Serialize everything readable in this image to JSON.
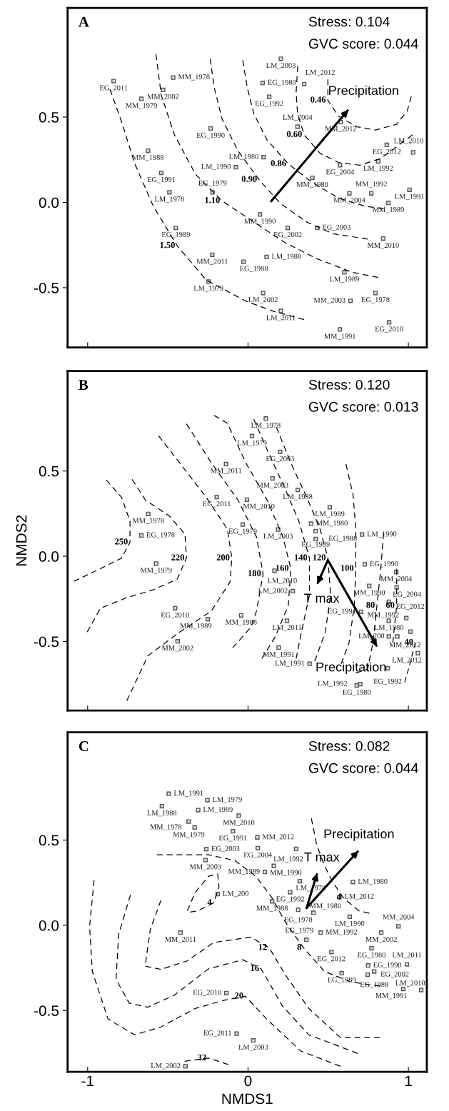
{
  "chart_data": [
    {
      "type": "scatter",
      "title": "A",
      "xlim": [
        -1.125,
        1.115
      ],
      "ylim": [
        -0.85,
        1.14
      ],
      "xticks": [
        -1,
        0,
        1
      ],
      "yticks": [
        {
          "value": -0.5,
          "label": "-0.5"
        },
        {
          "value": 0,
          "label": "0.0"
        },
        {
          "value": 0.5,
          "label": "0.5"
        }
      ],
      "tick_labels": "y",
      "annotations": [
        "Stress: 0.104",
        "GVC score: 0.044",
        {
          "text": "0.46",
          "x": 0.498,
          "y": 0.598
        },
        {
          "text": "0.60",
          "x": 0.35,
          "y": 0.396
        },
        {
          "text": "0.86",
          "x": 0.251,
          "y": 0.226
        },
        {
          "text": "0.90",
          "x": 0.069,
          "y": 0.133
        },
        {
          "text": "1.10",
          "x": -0.162,
          "y": 0.009
        },
        {
          "text": "1.50",
          "x": -0.442,
          "y": -0.254
        },
        {
          "text": "EG_2011",
          "x": -0.838,
          "y": 0.711
        },
        {
          "text": "MM_1978",
          "x": -0.467,
          "y": 0.732
        },
        {
          "text": "MM_2002",
          "x": -0.53,
          "y": 0.659
        },
        {
          "text": "MM_1979",
          "x": -0.665,
          "y": 0.607
        },
        {
          "text": "EG_1990",
          "x": -0.233,
          "y": 0.433
        },
        {
          "text": "MM_1988",
          "x": -0.624,
          "y": 0.303
        },
        {
          "text": "EG_1991",
          "x": -0.541,
          "y": 0.173
        },
        {
          "text": "LM_1978",
          "x": -0.49,
          "y": 0.059
        },
        {
          "text": "EG_1989",
          "x": -0.45,
          "y": -0.149
        },
        {
          "text": "LM_1990",
          "x": -0.076,
          "y": 0.206
        },
        {
          "text": "EG_1979",
          "x": -0.221,
          "y": 0.059
        },
        {
          "text": "MM_1990",
          "x": 0.074,
          "y": -0.071
        },
        {
          "text": "EG_2002",
          "x": 0.248,
          "y": -0.149
        },
        {
          "text": "EG_2003",
          "x": 0.432,
          "y": -0.149
        },
        {
          "text": "MM_2011",
          "x": -0.223,
          "y": -0.307
        },
        {
          "text": "LM_1979",
          "x": -0.246,
          "y": -0.464
        },
        {
          "text": "EG_1988",
          "x": -0.028,
          "y": -0.348
        },
        {
          "text": "LM_1988",
          "x": 0.116,
          "y": -0.32
        },
        {
          "text": "LM_2002",
          "x": 0.094,
          "y": -0.531
        },
        {
          "text": "LM_2011",
          "x": 0.205,
          "y": -0.636
        },
        {
          "text": "LM_2003",
          "x": 0.205,
          "y": 0.842
        },
        {
          "text": "EG_1980",
          "x": 0.091,
          "y": 0.7
        },
        {
          "text": "LM_2012",
          "x": 0.35,
          "y": 0.693
        },
        {
          "text": "EG_1992",
          "x": 0.132,
          "y": 0.619
        },
        {
          "text": "LM_2004",
          "x": 0.309,
          "y": 0.444
        },
        {
          "text": "LM_1980",
          "x": 0.097,
          "y": 0.265
        },
        {
          "text": "MM_1980",
          "x": 0.401,
          "y": 0.144
        },
        {
          "text": "MM_2012",
          "x": 0.578,
          "y": 0.471
        },
        {
          "text": "EG_2004",
          "x": 0.574,
          "y": 0.218
        },
        {
          "text": "EG_2012",
          "x": 0.865,
          "y": 0.337
        },
        {
          "text": "LM_1992",
          "x": 0.812,
          "y": 0.24
        },
        {
          "text": "MM_2004",
          "x": 0.632,
          "y": 0.053
        },
        {
          "text": "MM_1992",
          "x": 0.769,
          "y": 0.053
        },
        {
          "text": "LM_2010",
          "x": 1.03,
          "y": 0.293
        },
        {
          "text": "LM_1991",
          "x": 1.007,
          "y": 0.074
        },
        {
          "text": "MM_1989",
          "x": 0.875,
          "y": -0.003
        },
        {
          "text": "MM_2010",
          "x": 0.843,
          "y": -0.212
        },
        {
          "text": "LM_1989",
          "x": 0.601,
          "y": -0.41
        },
        {
          "text": "EG_1978",
          "x": 0.795,
          "y": -0.531
        },
        {
          "text": "MM_2003",
          "x": 0.639,
          "y": -0.577
        },
        {
          "text": "EG_2010",
          "x": 0.88,
          "y": -0.703
        },
        {
          "text": "MM_1991",
          "x": 0.573,
          "y": -0.745
        }
      ],
      "series": [
        {
          "color": "#555555",
          "marker": "square",
          "x": [
            -0.838,
            -0.467,
            -0.53,
            -0.665,
            -0.233,
            -0.624,
            -0.541,
            -0.49,
            -0.45,
            -0.076,
            -0.221,
            0.074,
            0.248,
            0.432,
            -0.223,
            -0.246,
            -0.028,
            0.116,
            0.094,
            0.205,
            0.205,
            0.091,
            0.35,
            0.132,
            0.309,
            0.097,
            0.401,
            0.578,
            0.574,
            0.865,
            0.812,
            0.632,
            0.769,
            1.03,
            1.007,
            0.875,
            0.843,
            0.601,
            0.795,
            0.639,
            0.88,
            0.573
          ],
          "values": [
            0.711,
            0.732,
            0.659,
            0.607,
            0.433,
            0.303,
            0.173,
            0.059,
            -0.149,
            0.206,
            0.059,
            -0.071,
            -0.149,
            -0.149,
            -0.307,
            -0.464,
            -0.348,
            -0.32,
            -0.531,
            -0.636,
            0.842,
            0.7,
            0.693,
            0.619,
            0.444,
            0.265,
            0.144,
            0.471,
            0.218,
            0.337,
            0.24,
            0.053,
            0.053,
            0.293,
            0.074,
            -0.003,
            -0.212,
            -0.41,
            -0.531,
            -0.577,
            -0.703,
            -0.745
          ]
        },
        {
          "type": "line",
          "color": "#000000",
          "line_style": "dashed",
          "marker": "none",
          "x": [
            -0.861,
            -0.789,
            -0.706,
            -0.591,
            -0.442,
            -0.261,
            -0.013,
            0.168,
            0.35
          ],
          "values": [
            0.663,
            0.474,
            0.226,
            -0.022,
            -0.254,
            -0.455,
            -0.579,
            -0.641,
            -0.687
          ]
        },
        {
          "type": "line",
          "color": "#000000",
          "line_style": "dashed",
          "marker": "none",
          "x": [
            -0.574,
            -0.541,
            -0.459,
            -0.327,
            -0.162,
            0.036,
            0.234,
            0.432,
            0.647,
            0.812
          ],
          "values": [
            0.868,
            0.628,
            0.396,
            0.164,
            0.009,
            -0.115,
            -0.238,
            -0.331,
            -0.409,
            -0.44
          ]
        },
        {
          "type": "line",
          "color": "#000000",
          "line_style": "dashed",
          "marker": "none",
          "x": [
            -0.236,
            -0.211,
            -0.162,
            -0.063,
            0.069,
            0.201,
            0.366,
            0.531,
            0.746
          ],
          "values": [
            0.842,
            0.675,
            0.489,
            0.303,
            0.133,
            -0.006,
            -0.115,
            -0.184,
            -0.215
          ]
        },
        {
          "type": "line",
          "color": "#000000",
          "line_style": "dashed",
          "marker": "none",
          "x": [
            -0.033,
            -0.005,
            0.036,
            0.119,
            0.251,
            0.399,
            0.564,
            0.729,
            0.845
          ],
          "values": [
            0.833,
            0.675,
            0.52,
            0.365,
            0.226,
            0.118,
            0.025,
            -0.022,
            -0.037
          ]
        },
        {
          "type": "line",
          "color": "#000000",
          "line_style": "dashed",
          "marker": "none",
          "x": [
            0.31,
            0.3,
            0.309,
            0.35,
            0.449,
            0.564,
            0.696,
            0.828,
            0.96,
            1.026
          ],
          "values": [
            0.799,
            0.644,
            0.52,
            0.396,
            0.288,
            0.234,
            0.218,
            0.257,
            0.35,
            0.396
          ]
        },
        {
          "type": "line",
          "color": "#000000",
          "line_style": "dashed",
          "marker": "none",
          "x": [
            0.498,
            0.498,
            0.564,
            0.68,
            0.795,
            0.927,
            0.993,
            1.018
          ],
          "values": [
            0.721,
            0.598,
            0.505,
            0.443,
            0.424,
            0.458,
            0.536,
            0.621
          ]
        },
        {
          "type": "line",
          "name": "Precipitation",
          "color": "#000000",
          "line_style": "solid",
          "marker": "none",
          "x": [
            0.144,
            0.625
          ],
          "values": [
            0.006,
            0.543
          ]
        }
      ]
    },
    {
      "type": "scatter",
      "title": "B",
      "ylabel": "NMDS2",
      "xlim": [
        -1.125,
        1.115
      ],
      "ylim": [
        -0.905,
        1.087
      ],
      "xticks": [
        -1,
        0,
        1
      ],
      "yticks": [
        {
          "value": -0.5,
          "label": "-0.5"
        },
        {
          "value": 0,
          "label": "0.0"
        },
        {
          "value": 0.5,
          "label": "0.5"
        }
      ],
      "tick_labels": "y",
      "annotations": [
        "Stress: 0.120",
        "GVC score: 0.013",
        {
          "text": "250",
          "x": -0.736,
          "y": 0.082
        },
        {
          "text": "220",
          "x": -0.384,
          "y": -0.011
        },
        {
          "text": "200",
          "x": -0.101,
          "y": -0.011
        },
        {
          "text": "180",
          "x": 0.094,
          "y": -0.104
        },
        {
          "text": "160",
          "x": 0.267,
          "y": -0.073
        },
        {
          "text": "140",
          "x": 0.383,
          "y": -0.011
        },
        {
          "text": "120",
          "x": 0.498,
          "y": -0.011
        },
        {
          "text": "100",
          "x": 0.672,
          "y": -0.073
        },
        {
          "text": "80",
          "x": 0.804,
          "y": -0.29
        },
        {
          "text": "60",
          "x": 0.927,
          "y": -0.29
        },
        {
          "text": "40",
          "x": 1.043,
          "y": -0.507
        },
        {
          "text": "LM_1978",
          "x": 0.111,
          "y": 0.808
        },
        {
          "text": "LM_1979",
          "x": 0.025,
          "y": 0.705
        },
        {
          "text": "EG_2003",
          "x": 0.2,
          "y": 0.612
        },
        {
          "text": "MM_2011",
          "x": -0.137,
          "y": 0.541
        },
        {
          "text": "MM_2003",
          "x": 0.153,
          "y": 0.457
        },
        {
          "text": "LM_1988",
          "x": 0.31,
          "y": 0.389
        },
        {
          "text": "EG_2011",
          "x": -0.195,
          "y": 0.347
        },
        {
          "text": "MM_2010",
          "x": -0.007,
          "y": 0.332
        },
        {
          "text": "LM_1989",
          "x": 0.51,
          "y": 0.288
        },
        {
          "text": "MM_1978",
          "x": -0.622,
          "y": 0.248
        },
        {
          "text": "EG_1979",
          "x": -0.033,
          "y": 0.186
        },
        {
          "text": "MM_1980",
          "x": 0.393,
          "y": 0.191
        },
        {
          "text": "LM_2003",
          "x": 0.188,
          "y": 0.157
        },
        {
          "text": "EG_1989",
          "x": 0.422,
          "y": 0.147
        },
        {
          "text": "EG_1988",
          "x": 0.422,
          "y": 0.101
        },
        {
          "text": "LM_1990",
          "x": 0.711,
          "y": 0.127
        },
        {
          "text": "EG_1978",
          "x": -0.665,
          "y": 0.122
        },
        {
          "text": "MM_1979",
          "x": -0.573,
          "y": -0.043
        },
        {
          "text": "EG_1990",
          "x": 0.728,
          "y": -0.048
        },
        {
          "text": "LM_2010",
          "x": 0.165,
          "y": -0.085
        },
        {
          "text": "MM_2004",
          "x": 0.924,
          "y": -0.093
        },
        {
          "text": "MM_1990",
          "x": 0.756,
          "y": -0.174
        },
        {
          "text": "EG_2004",
          "x": 0.927,
          "y": -0.183
        },
        {
          "text": "LM_2002",
          "x": 0.279,
          "y": -0.205
        },
        {
          "text": "MM_1992",
          "x": 0.878,
          "y": -0.267
        },
        {
          "text": "EG_2010",
          "x": -0.455,
          "y": -0.305
        },
        {
          "text": "EG_1991",
          "x": 0.705,
          "y": -0.326
        },
        {
          "text": "MM_1988",
          "x": -0.043,
          "y": -0.347
        },
        {
          "text": "LM_1980",
          "x": 0.878,
          "y": -0.378
        },
        {
          "text": "EG_2012",
          "x": 0.987,
          "y": -0.363
        },
        {
          "text": "LM_2011",
          "x": 0.243,
          "y": -0.378
        },
        {
          "text": "MM_1989",
          "x": -0.251,
          "y": -0.369
        },
        {
          "text": "MM_2012",
          "x": 1.013,
          "y": -0.442
        },
        {
          "text": "LM_200",
          "x": 0.931,
          "y": -0.471
        },
        {
          "text": "LM_2012",
          "x": 1.059,
          "y": -0.569
        },
        {
          "text": "MM_2002",
          "x": -0.439,
          "y": -0.499
        },
        {
          "text": "MM_1991",
          "x": 0.191,
          "y": -0.536
        },
        {
          "text": "LM_1991",
          "x": 0.384,
          "y": -0.631
        },
        {
          "text": "EG_1992",
          "x": 0.871,
          "y": -0.657
        },
        {
          "text": "EG_1980",
          "x": 0.678,
          "y": -0.758
        },
        {
          "text": "LM_1992",
          "x": 0.7,
          "y": -0.75
        }
      ],
      "series": [
        {
          "color": "#555555",
          "marker": "square",
          "x": [
            0.111,
            0.025,
            0.2,
            -0.137,
            0.153,
            0.31,
            -0.195,
            -0.007,
            0.51,
            -0.622,
            -0.033,
            0.393,
            0.188,
            0.422,
            0.422,
            0.711,
            -0.665,
            -0.573,
            0.728,
            0.165,
            0.924,
            0.756,
            0.927,
            0.279,
            0.878,
            -0.455,
            0.705,
            -0.043,
            0.878,
            0.987,
            0.243,
            -0.251,
            1.013,
            0.878,
            0.931,
            1.059,
            -0.439,
            0.191,
            0.384,
            0.871,
            0.678,
            0.7
          ],
          "values": [
            0.808,
            0.705,
            0.612,
            0.541,
            0.457,
            0.389,
            0.347,
            0.332,
            0.288,
            0.248,
            0.186,
            0.191,
            0.157,
            0.147,
            0.101,
            0.127,
            0.122,
            -0.043,
            -0.048,
            -0.085,
            -0.093,
            -0.174,
            -0.183,
            -0.205,
            -0.267,
            -0.305,
            -0.326,
            -0.347,
            -0.378,
            -0.363,
            -0.378,
            -0.369,
            -0.442,
            -0.471,
            -0.471,
            -0.569,
            -0.499,
            -0.536,
            -0.631,
            -0.657,
            -0.758,
            -0.75
          ]
        },
        {
          "type": "line",
          "color": "#000000",
          "line_style": "dashed",
          "marker": "none",
          "x": [
            -0.884,
            -0.789,
            -0.736,
            -0.736,
            -0.789,
            -0.921,
            -1.086
          ],
          "values": [
            0.447,
            0.346,
            0.206,
            0.082,
            -0.011,
            -0.073,
            -0.147
          ]
        },
        {
          "type": "line",
          "color": "#000000",
          "line_style": "dashed",
          "marker": "none",
          "x": [
            -0.723,
            -0.64,
            -0.492,
            -0.393,
            -0.384,
            -0.442,
            -0.591,
            -0.756,
            -0.921,
            -1.003
          ],
          "values": [
            0.451,
            0.33,
            0.237,
            0.129,
            -0.011,
            -0.135,
            -0.197,
            -0.243,
            -0.305,
            -0.445
          ]
        },
        {
          "type": "line",
          "color": "#000000",
          "line_style": "dashed",
          "marker": "none",
          "x": [
            -0.558,
            -0.426,
            -0.261,
            -0.129,
            -0.101,
            -0.112,
            -0.228,
            -0.426,
            -0.624,
            -0.756
          ],
          "values": [
            0.707,
            0.547,
            0.346,
            0.16,
            -0.011,
            -0.15,
            -0.321,
            -0.445,
            -0.584,
            -0.848
          ]
        },
        {
          "type": "line",
          "color": "#000000",
          "line_style": "dashed",
          "marker": "none",
          "x": [
            -0.384,
            -0.228,
            -0.063,
            0.053,
            0.094,
            0.053,
            0.02,
            -0.096
          ],
          "values": [
            0.777,
            0.547,
            0.33,
            0.113,
            -0.104,
            -0.321,
            -0.414,
            -0.538
          ]
        },
        {
          "type": "line",
          "color": "#000000",
          "line_style": "dashed",
          "marker": "none",
          "x": [
            -0.211,
            -0.129,
            -0.013,
            0.119,
            0.218,
            0.267,
            0.251,
            0.168,
            0.086
          ],
          "values": [
            0.826,
            0.78,
            0.547,
            0.33,
            0.113,
            -0.073,
            -0.29,
            -0.476,
            -0.6
          ]
        },
        {
          "type": "line",
          "color": "#000000",
          "line_style": "dashed",
          "marker": "none",
          "x": [
            0.036,
            0.119,
            0.218,
            0.317,
            0.383,
            0.383,
            0.333,
            0.3
          ],
          "values": [
            0.803,
            0.625,
            0.423,
            0.206,
            -0.011,
            -0.228,
            -0.445,
            -0.6
          ]
        },
        {
          "type": "line",
          "color": "#000000",
          "line_style": "dashed",
          "marker": "none",
          "x": [
            0.177,
            0.267,
            0.366,
            0.449,
            0.498,
            0.515,
            0.482,
            0.416
          ],
          "values": [
            0.757,
            0.547,
            0.346,
            0.16,
            -0.011,
            -0.228,
            -0.445,
            -0.616
          ]
        },
        {
          "type": "line",
          "color": "#000000",
          "line_style": "dashed",
          "marker": "none",
          "x": [
            0.611,
            0.655,
            0.672,
            0.672,
            0.663,
            0.63,
            0.581
          ],
          "values": [
            0.54,
            0.361,
            0.16,
            -0.073,
            -0.29,
            -0.507,
            -0.631
          ]
        },
        {
          "type": "line",
          "color": "#000000",
          "line_style": "dashed",
          "marker": "none",
          "x": [
            0.845,
            0.828,
            0.804,
            0.779,
            0.746,
            0.672
          ],
          "values": [
            0.136,
            -0.073,
            -0.29,
            -0.507,
            -0.662,
            -0.685
          ]
        },
        {
          "type": "line",
          "color": "#000000",
          "line_style": "dashed",
          "marker": "none",
          "x": [
            0.927,
            0.927,
            0.903
          ],
          "values": [
            -0.073,
            -0.29,
            -0.507
          ]
        },
        {
          "type": "line",
          "color": "#000000",
          "line_style": "dashed",
          "marker": "none",
          "x": [
            1.043,
            1.01,
            0.977
          ],
          "values": [
            -0.507,
            -0.631,
            -0.74
          ]
        },
        {
          "type": "line",
          "name": "T max",
          "color": "#000000",
          "line_style": "solid",
          "marker": "none",
          "x": [
            0.498,
            0.432
          ],
          "values": [
            -0.023,
            -0.163
          ]
        },
        {
          "type": "line",
          "name": "Precipitation",
          "color": "#000000",
          "line_style": "solid",
          "marker": "none",
          "x": [
            0.498,
            0.804
          ],
          "values": [
            -0.023,
            -0.53
          ]
        }
      ]
    },
    {
      "type": "scatter",
      "title": "C",
      "xlabel": "NMDS1",
      "xlim": [
        -1.125,
        1.115
      ],
      "ylim": [
        -0.86,
        1.133
      ],
      "xticks": [
        -1,
        0,
        1
      ],
      "yticks": [
        {
          "value": -0.5,
          "label": "-0.5"
        },
        {
          "value": 0,
          "label": "0.0"
        },
        {
          "value": 0.5,
          "label": "0.5"
        }
      ],
      "annotations": [
        "Stress: 0.082",
        "GVC score: 0.044",
        {
          "text": "4",
          "x": 0.593,
          "y": 0.163
        },
        {
          "text": "4",
          "x": -0.214,
          "y": 0.132
        },
        {
          "text": "8",
          "x": 0.346,
          "y": -0.132
        },
        {
          "text": "12",
          "x": 0.132,
          "y": -0.132
        },
        {
          "text": "16",
          "x": 0.082,
          "y": -0.256
        },
        {
          "text": "20",
          "x": -0.016,
          "y": -0.417
        },
        {
          "text": "32",
          "x": -0.247,
          "y": -0.78
        },
        {
          "text": "LM_1991",
          "x": -0.494,
          "y": 0.772
        },
        {
          "text": "LM_1979",
          "x": -0.253,
          "y": 0.735
        },
        {
          "text": "LM_1988",
          "x": -0.537,
          "y": 0.699
        },
        {
          "text": "LM_1989",
          "x": -0.311,
          "y": 0.676
        },
        {
          "text": "MM_2010",
          "x": -0.058,
          "y": 0.643
        },
        {
          "text": "MM_1979",
          "x": -0.37,
          "y": 0.609
        },
        {
          "text": "MM_1978",
          "x": -0.333,
          "y": 0.574
        },
        {
          "text": "EG_1991",
          "x": -0.094,
          "y": 0.552
        },
        {
          "text": "MM_2012",
          "x": 0.058,
          "y": 0.516
        },
        {
          "text": "EG_2003",
          "x": -0.26,
          "y": 0.447
        },
        {
          "text": "EG_2004",
          "x": 0.061,
          "y": 0.453
        },
        {
          "text": "LM_1992",
          "x": 0.3,
          "y": 0.448
        },
        {
          "text": "MM_2003",
          "x": -0.265,
          "y": 0.383
        },
        {
          "text": "MM_1990",
          "x": 0.161,
          "y": 0.349
        },
        {
          "text": "MM_1989",
          "x": 0.105,
          "y": 0.313
        },
        {
          "text": "LM_1978",
          "x": 0.323,
          "y": 0.259
        },
        {
          "text": "LM_1980",
          "x": 0.654,
          "y": 0.254
        },
        {
          "text": "EG_1992",
          "x": 0.263,
          "y": 0.194
        },
        {
          "text": "LM_2012",
          "x": 0.57,
          "y": 0.166
        },
        {
          "text": "LM_200",
          "x": -0.189,
          "y": 0.183
        },
        {
          "text": "MM_1988",
          "x": 0.15,
          "y": 0.14
        },
        {
          "text": "EG_1978",
          "x": 0.313,
          "y": 0.091
        },
        {
          "text": "MM_1980",
          "x": 0.408,
          "y": 0.073
        },
        {
          "text": "LM_1990",
          "x": 0.634,
          "y": 0.05
        },
        {
          "text": "MM_2002",
          "x": 0.831,
          "y": -0.043
        },
        {
          "text": "MM_2004",
          "x": 0.938,
          "y": -0.006
        },
        {
          "text": "MM_2011",
          "x": -0.421,
          "y": -0.043
        },
        {
          "text": "MM_1992",
          "x": 0.453,
          "y": -0.043
        },
        {
          "text": "EG_1979",
          "x": 0.364,
          "y": -0.085
        },
        {
          "text": "EG_1980",
          "x": 0.77,
          "y": -0.135
        },
        {
          "text": "EG_2012",
          "x": 0.52,
          "y": -0.157
        },
        {
          "text": "EG_1990",
          "x": 0.749,
          "y": -0.236
        },
        {
          "text": "LM_2011",
          "x": 0.991,
          "y": -0.229
        },
        {
          "text": "EG_1988",
          "x": 0.787,
          "y": -0.271
        },
        {
          "text": "EG_1989",
          "x": 0.584,
          "y": -0.281
        },
        {
          "text": "EG_2002",
          "x": 0.746,
          "y": -0.29
        },
        {
          "text": "MM_1991",
          "x": 0.968,
          "y": -0.374
        },
        {
          "text": "LM_2010",
          "x": 1.08,
          "y": -0.38
        },
        {
          "text": "EG_2010",
          "x": -0.135,
          "y": -0.398
        },
        {
          "text": "EG_2011",
          "x": -0.071,
          "y": -0.636
        },
        {
          "text": "LM_2003",
          "x": 0.033,
          "y": -0.676
        },
        {
          "text": "LM_2002",
          "x": -0.39,
          "y": -0.828
        }
      ],
      "series": [
        {
          "color": "#555555",
          "marker": "square",
          "x": [
            -0.494,
            -0.253,
            -0.537,
            -0.311,
            -0.058,
            -0.37,
            -0.333,
            -0.094,
            0.058,
            -0.26,
            0.061,
            0.3,
            -0.265,
            0.161,
            0.105,
            0.323,
            0.654,
            0.263,
            0.57,
            -0.189,
            0.15,
            0.313,
            0.408,
            0.634,
            0.831,
            0.938,
            -0.421,
            0.453,
            0.364,
            0.77,
            0.52,
            0.749,
            0.991,
            0.787,
            0.584,
            0.746,
            0.968,
            1.08,
            -0.135,
            -0.071,
            0.033,
            -0.39
          ],
          "values": [
            0.772,
            0.735,
            0.699,
            0.676,
            0.643,
            0.609,
            0.574,
            0.552,
            0.516,
            0.447,
            0.453,
            0.448,
            0.383,
            0.349,
            0.313,
            0.259,
            0.254,
            0.194,
            0.166,
            0.183,
            0.14,
            0.091,
            0.073,
            0.05,
            -0.043,
            -0.006,
            -0.043,
            -0.043,
            -0.085,
            -0.135,
            -0.157,
            -0.236,
            -0.229,
            -0.271,
            -0.281,
            -0.29,
            -0.374,
            -0.38,
            -0.398,
            -0.636,
            -0.676,
            -0.828
          ]
        },
        {
          "type": "line",
          "color": "#000000",
          "line_style": "dashed",
          "marker": "none",
          "x": [
            0.395,
            0.428,
            0.477,
            0.527,
            0.593,
            0.691,
            0.757
          ],
          "values": [
            0.628,
            0.473,
            0.349,
            0.256,
            0.163,
            0.085,
            0.07
          ]
        },
        {
          "type": "line",
          "color": "#000000",
          "line_style": "dashed",
          "marker": "none",
          "x": [
            -0.568,
            -0.247,
            -0.082,
            0.049,
            0.148,
            0.23,
            0.346,
            0.477,
            0.642,
            0.823
          ],
          "values": [
            0.414,
            0.414,
            0.38,
            0.287,
            0.163,
            0.023,
            -0.132,
            -0.271,
            -0.333,
            -0.357
          ]
        },
        {
          "type": "line",
          "color": "#000000",
          "line_style": "dashed",
          "marker": "none",
          "x": [
            -0.379,
            -0.329,
            -0.247,
            -0.189,
            -0.181,
            -0.214,
            -0.313,
            -0.362
          ],
          "values": [
            0.085,
            0.194,
            0.287,
            0.302,
            0.225,
            0.132,
            0.085,
            0.078
          ]
        },
        {
          "type": "line",
          "color": "#000000",
          "line_style": "dashed",
          "marker": "none",
          "x": [
            -0.543,
            -0.609,
            -0.642,
            -0.543,
            -0.379,
            -0.214,
            0.016,
            0.132,
            0.23,
            0.379,
            0.576,
            0.823
          ],
          "values": [
            0.147,
            -0.023,
            -0.24,
            -0.259,
            -0.209,
            -0.101,
            -0.07,
            -0.132,
            -0.287,
            -0.488,
            -0.659,
            -0.659
          ]
        },
        {
          "type": "line",
          "color": "#000000",
          "line_style": "dashed",
          "marker": "none",
          "x": [
            -0.733,
            -0.807,
            -0.823,
            -0.741,
            -0.626,
            -0.461,
            -0.247,
            -0.033,
            0.082,
            0.214,
            0.379,
            0.684
          ],
          "values": [
            0.178,
            -0.054,
            -0.318,
            -0.457,
            -0.481,
            -0.411,
            -0.256,
            -0.202,
            -0.256,
            -0.473,
            -0.643,
            -0.752
          ]
        },
        {
          "type": "line",
          "color": "#000000",
          "line_style": "dashed",
          "marker": "none",
          "x": [
            -0.96,
            -0.988,
            -0.971,
            -0.873,
            -0.708,
            -0.543,
            -0.329,
            -0.148,
            -0.016,
            0.115,
            0.329,
            0.576
          ],
          "values": [
            0.264,
            -0.008,
            -0.271,
            -0.55,
            -0.643,
            -0.597,
            -0.488,
            -0.44,
            -0.417,
            -0.549,
            -0.738,
            -0.828
          ]
        },
        {
          "type": "line",
          "color": "#000000",
          "line_style": "dashed",
          "marker": "none",
          "x": [
            -0.395,
            -0.247,
            -0.123
          ],
          "values": [
            -0.798,
            -0.78,
            -0.817
          ]
        },
        {
          "type": "line",
          "name": "T max",
          "color": "#000000",
          "line_style": "solid",
          "marker": "none",
          "x": [
            0.365,
            0.431
          ],
          "values": [
            0.101,
            0.305
          ]
        },
        {
          "type": "line",
          "name": "Precipitation",
          "color": "#000000",
          "line_style": "solid",
          "marker": "none",
          "x": [
            0.365,
            0.688
          ],
          "values": [
            0.101,
            0.437
          ]
        }
      ]
    }
  ]
}
